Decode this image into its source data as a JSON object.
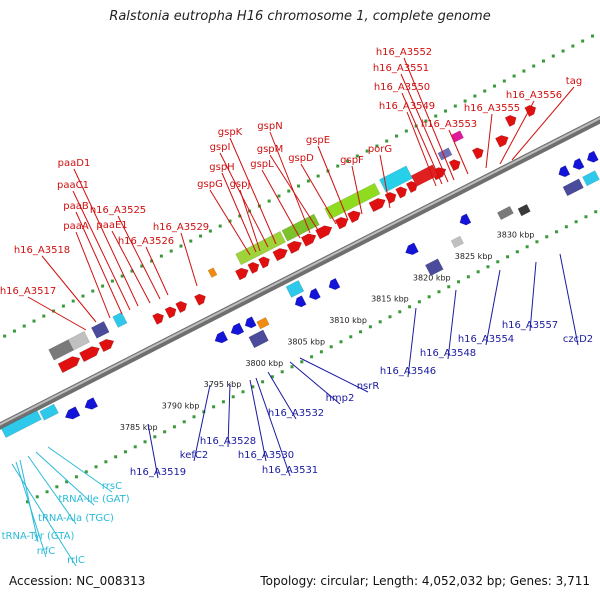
{
  "title": "Ralstonia eutropha H16 chromosome 1, complete genome",
  "footer": {
    "accession": "Accession: NC_008313",
    "topology": "Topology: circular; Length: 4,052,032 bp; Genes: 3,711"
  },
  "colors": {
    "forward_label": "#d01010",
    "reverse_label": "#1a1aa0",
    "rna_label": "#2bbbd8",
    "backbone": "#8c8c8c",
    "tick_dot": "#3a9a3a",
    "forward_gene": "#e01010",
    "reverse_gene": "#1414d8"
  },
  "scale_labels": [
    "3785 kbp",
    "3790 kbp",
    "3795 kbp",
    "3800 kbp",
    "3805 kbp",
    "3810 kbp",
    "3815 kbp",
    "3820 kbp",
    "3825 kbp",
    "3830 kbp"
  ],
  "forward_labels": [
    "h16_A3517",
    "h16_A3518",
    "paaA",
    "paaB",
    "paaC1",
    "paaD1",
    "paaE1",
    "h16_A3525",
    "h16_A3526",
    "h16_A3529",
    "gspG",
    "gspJ",
    "gspH",
    "gspI",
    "gspK",
    "gspL",
    "gspN",
    "gspM",
    "gspD",
    "gspE",
    "gspF",
    "porG",
    "h16_A3549",
    "h16_A3550",
    "h16_A3551",
    "h16_A3552",
    "h16_A3553",
    "h16_A3555",
    "h16_A3556",
    "tag"
  ],
  "reverse_labels": [
    "h16_A3519",
    "kefC2",
    "h16_A3528",
    "h16_A3530",
    "h16_A3531",
    "h16_A3532",
    "hmp2",
    "nsrR",
    "h16_A3546",
    "h16_A3548",
    "h16_A3554",
    "h16_A3557",
    "czcD2"
  ],
  "rna_labels": [
    "rrsC",
    "tRNA-Ile (GAT)",
    "tRNA-Ala (TGC)",
    "tRNA-Tyr (GTA)",
    "rrfC",
    "rrlC"
  ]
}
